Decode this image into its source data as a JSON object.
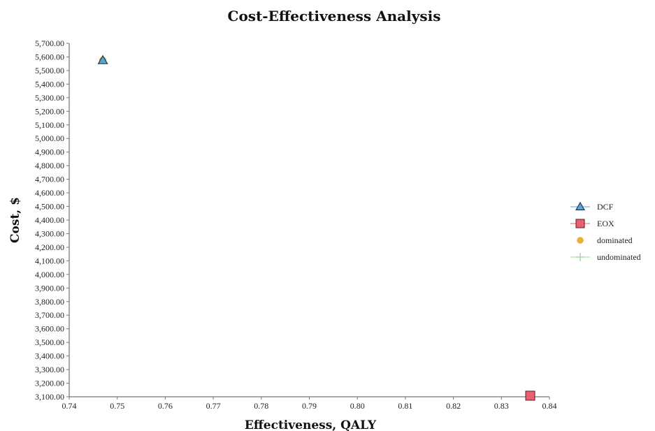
{
  "chart_data": {
    "type": "scatter",
    "title": "Cost-Effectiveness Analysis",
    "xlabel": "Effectiveness, QALY",
    "ylabel": "Cost, $",
    "xlim": [
      0.74,
      0.84
    ],
    "ylim": [
      3100,
      5700
    ],
    "x_ticks": [
      "0.74",
      "0.75",
      "0.76",
      "0.77",
      "0.78",
      "0.79",
      "0.80",
      "0.81",
      "0.82",
      "0.83",
      "0.84"
    ],
    "x_tick_values": [
      0.74,
      0.75,
      0.76,
      0.77,
      0.78,
      0.79,
      0.8,
      0.81,
      0.82,
      0.83,
      0.84
    ],
    "y_ticks": [
      "3,100.00",
      "3,200.00",
      "3,300.00",
      "3,400.00",
      "3,500.00",
      "3,600.00",
      "3,700.00",
      "3,800.00",
      "3,900.00",
      "4,000.00",
      "4,100.00",
      "4,200.00",
      "4,300.00",
      "4,400.00",
      "4,500.00",
      "4,600.00",
      "4,700.00",
      "4,800.00",
      "4,900.00",
      "5,000.00",
      "5,100.00",
      "5,200.00",
      "5,300.00",
      "5,400.00",
      "5,500.00",
      "5,600.00",
      "5,700.00"
    ],
    "y_tick_values": [
      3100,
      3200,
      3300,
      3400,
      3500,
      3600,
      3700,
      3800,
      3900,
      4000,
      4100,
      4200,
      4300,
      4400,
      4500,
      4600,
      4700,
      4800,
      4900,
      5000,
      5100,
      5200,
      5300,
      5400,
      5500,
      5600,
      5700
    ],
    "grid": false,
    "legend_position": "right",
    "series": [
      {
        "name": "dominated",
        "marker": "circle",
        "color": "#e8b13a",
        "points": [
          {
            "x": 0.747,
            "y": 5575
          }
        ]
      },
      {
        "name": "DCF",
        "marker": "triangle",
        "color": "#5aa6d2",
        "points": [
          {
            "x": 0.747,
            "y": 5575
          }
        ]
      },
      {
        "name": "EOX",
        "marker": "square",
        "color": "#e8616f",
        "points": [
          {
            "x": 0.836,
            "y": 3108
          }
        ]
      },
      {
        "name": "undominated",
        "marker": "plus",
        "color": "#9fd59a",
        "points": []
      }
    ],
    "legend": [
      {
        "label": "DCF",
        "marker": "triangle",
        "color": "#5aa6d2",
        "line_color": "#5aa6d2"
      },
      {
        "label": "EOX",
        "marker": "square",
        "color": "#e8616f",
        "line_color": "#e8616f"
      },
      {
        "label": "dominated",
        "marker": "circle",
        "color": "#e8b13a",
        "line_color": ""
      },
      {
        "label": "undominated",
        "marker": "plus",
        "color": "#9fd59a",
        "line_color": "#9fd59a"
      }
    ]
  }
}
